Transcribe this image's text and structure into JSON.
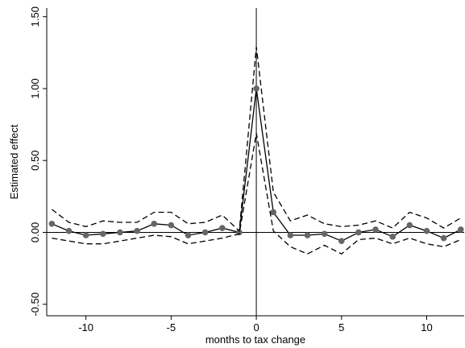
{
  "chart_data": {
    "type": "line",
    "xlabel": "months to tax change",
    "ylabel": "Estimated effect",
    "xlim": [
      -12.3,
      12.2
    ],
    "ylim": [
      -0.58,
      1.56
    ],
    "xticks": [
      -10,
      -5,
      0,
      5,
      10
    ],
    "xtick_labels": [
      "-10",
      "-5",
      "0",
      "5",
      "10"
    ],
    "yticks": [
      -0.5,
      0,
      0.5,
      1,
      1.5
    ],
    "ytick_labels": [
      "-0.50",
      "0.00",
      "0.50",
      "1.00",
      "1.50"
    ],
    "reference_lines": {
      "x": 0,
      "y": 0
    },
    "grid": false,
    "legend": "none",
    "x": [
      -12,
      -11,
      -10,
      -9,
      -8,
      -7,
      -6,
      -5,
      -4,
      -3,
      -2,
      -1,
      0,
      1,
      2,
      3,
      4,
      5,
      6,
      7,
      8,
      9,
      10,
      11,
      12
    ],
    "series": [
      {
        "role": "estimate",
        "values": [
          0.06,
          0.01,
          -0.02,
          -0.01,
          0.0,
          0.01,
          0.06,
          0.05,
          -0.02,
          0.0,
          0.03,
          0.0,
          1.0,
          0.14,
          -0.02,
          -0.02,
          -0.01,
          -0.06,
          0.0,
          0.02,
          -0.03,
          0.05,
          0.01,
          -0.04,
          0.02
        ],
        "style": "solid-with-markers",
        "color": "#000000",
        "marker_color": "#666666"
      },
      {
        "role": "upper-ci",
        "values": [
          0.16,
          0.07,
          0.04,
          0.08,
          0.07,
          0.07,
          0.14,
          0.14,
          0.06,
          0.07,
          0.12,
          0.01,
          1.29,
          0.28,
          0.08,
          0.12,
          0.06,
          0.04,
          0.05,
          0.08,
          0.03,
          0.14,
          0.1,
          0.03,
          0.1
        ],
        "style": "dashed",
        "color": "#000000"
      },
      {
        "role": "lower-ci",
        "values": [
          -0.04,
          -0.06,
          -0.08,
          -0.08,
          -0.06,
          -0.04,
          -0.02,
          -0.03,
          -0.08,
          -0.06,
          -0.04,
          -0.01,
          0.69,
          0.01,
          -0.1,
          -0.15,
          -0.09,
          -0.15,
          -0.05,
          -0.04,
          -0.08,
          -0.04,
          -0.08,
          -0.1,
          -0.05
        ],
        "style": "dashed",
        "color": "#000000"
      }
    ]
  }
}
